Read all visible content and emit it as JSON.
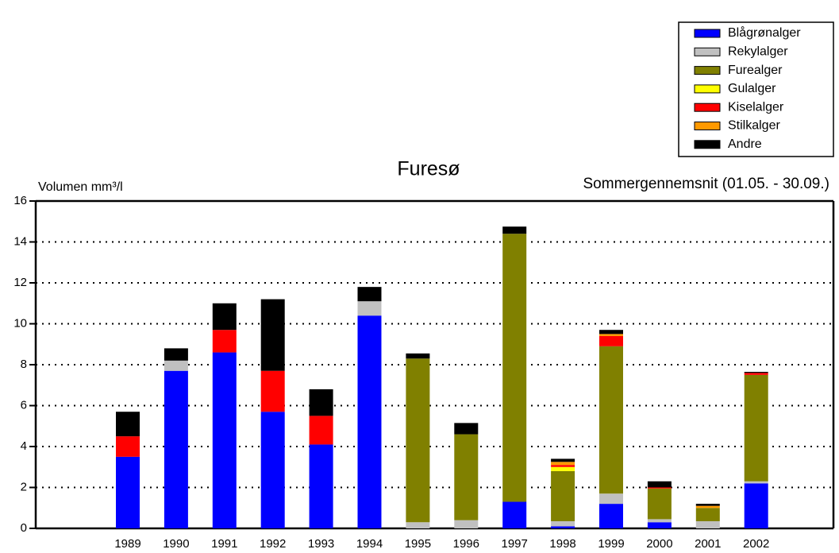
{
  "chart_data": {
    "type": "stacked_bar",
    "title": "Furesø",
    "subtitle": "Sommergennemsnit (01.05. - 30.09.)",
    "y_label": "Volumen mm³/l",
    "categories": [
      "1989",
      "1990",
      "1991",
      "1992",
      "1993",
      "1994",
      "1995",
      "1996",
      "1997",
      "1998",
      "1999",
      "2000",
      "2001",
      "2002"
    ],
    "series": [
      {
        "name": "Blågrønalger",
        "color": "#0000ff",
        "values": [
          3.5,
          7.7,
          8.6,
          5.7,
          4.1,
          10.4,
          0,
          0,
          1.3,
          0.1,
          1.2,
          0.3,
          0,
          2.2
        ]
      },
      {
        "name": "Rekylalger",
        "color": "#c0c0c0",
        "values": [
          0,
          0.5,
          0,
          0,
          0,
          0.7,
          0.3,
          0.4,
          0,
          0.25,
          0.5,
          0.15,
          0.35,
          0.1
        ]
      },
      {
        "name": "Furealger",
        "color": "#808000",
        "values": [
          0,
          0,
          0,
          0,
          0,
          0,
          8.0,
          4.2,
          13.1,
          2.45,
          7.2,
          1.5,
          0.65,
          5.2
        ]
      },
      {
        "name": "Gulalger",
        "color": "#ffff00",
        "values": [
          0,
          0,
          0,
          0,
          0,
          0,
          0,
          0,
          0,
          0.2,
          0,
          0,
          0,
          0
        ]
      },
      {
        "name": "Kiselalger",
        "color": "#ff0000",
        "values": [
          1.0,
          0,
          1.1,
          2.0,
          1.4,
          0,
          0,
          0,
          0,
          0.1,
          0.5,
          0.05,
          0,
          0.1
        ]
      },
      {
        "name": "Stilkalger",
        "color": "#ff9900",
        "values": [
          0,
          0,
          0,
          0,
          0,
          0,
          0,
          0,
          0,
          0.15,
          0.1,
          0,
          0.1,
          0
        ]
      },
      {
        "name": "Andre",
        "color": "#000000",
        "values": [
          1.2,
          0.6,
          1.3,
          3.5,
          1.3,
          0.7,
          0.25,
          0.55,
          0.35,
          0.15,
          0.2,
          0.3,
          0.1,
          0.05
        ]
      }
    ],
    "ylim": [
      0,
      16
    ],
    "yticks": [
      0,
      2,
      4,
      6,
      8,
      10,
      12,
      14,
      16
    ],
    "grid": true,
    "legend": "top-right"
  }
}
